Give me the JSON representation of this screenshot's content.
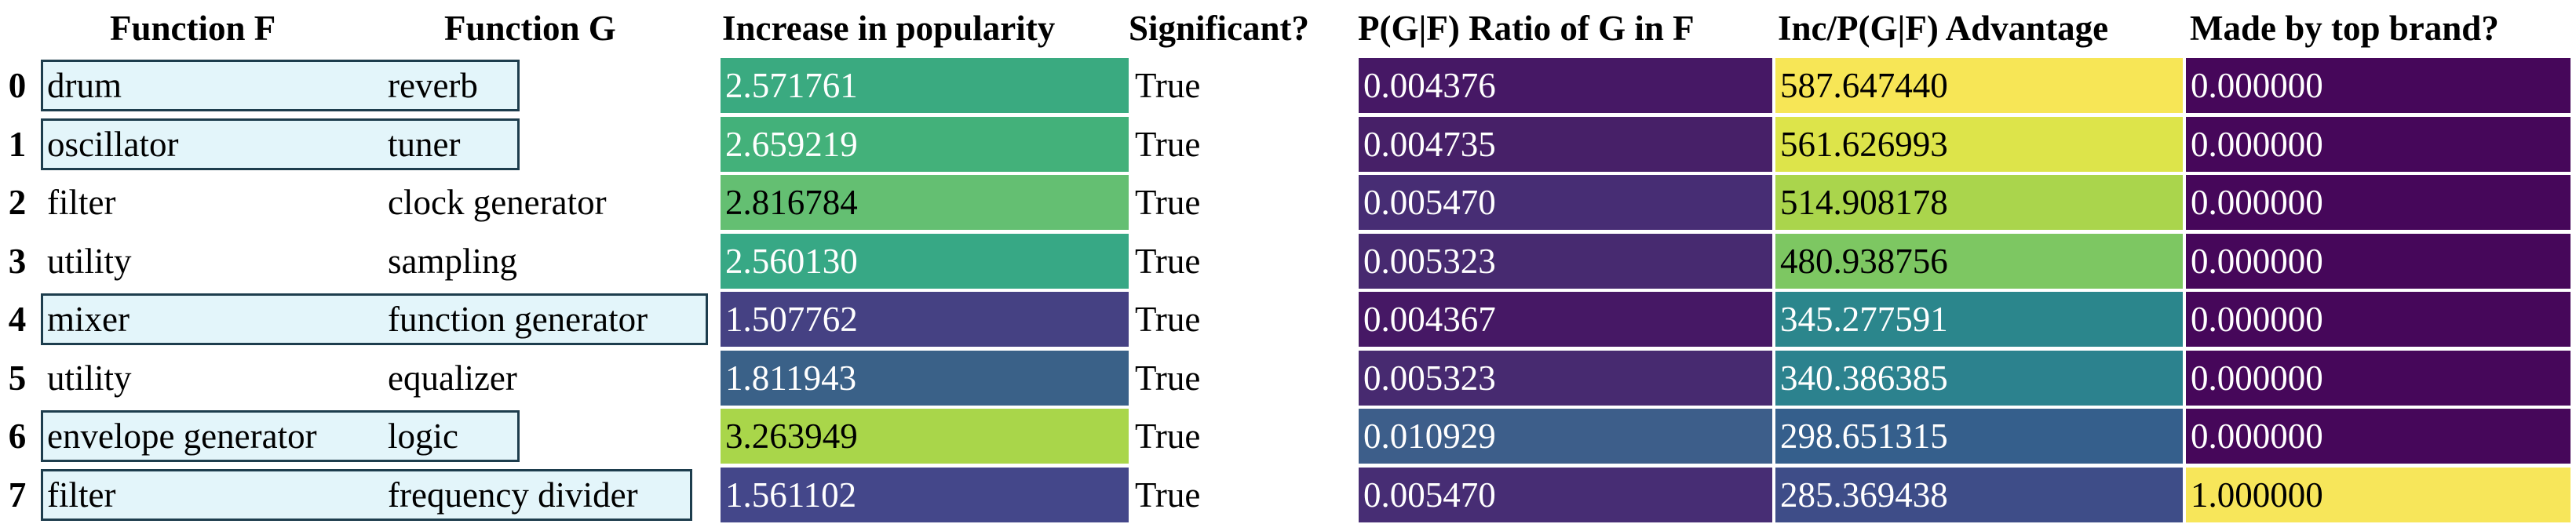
{
  "headers": {
    "function_f": "Function F",
    "function_g": "Function G",
    "increase": "Increase in popularity",
    "significant": "Significant?",
    "pgf": "P(G|F) Ratio of G in F",
    "inc_pgf": "Inc/P(G|F) Advantage",
    "top_brand": "Made by top brand?"
  },
  "rows": [
    {
      "index": "0",
      "f": "drum",
      "g": "reverb",
      "increase": "2.571761",
      "significant": "True",
      "pgf": "0.004376",
      "inc_pgf": "587.647440",
      "top_brand": "0.000000",
      "highlighted": true,
      "colors": {
        "increase": "#3aaa80",
        "pgf": "#461865",
        "inc_pgf": "#f7e656",
        "top_brand": "#46075a"
      }
    },
    {
      "index": "1",
      "f": "oscillator",
      "g": "tuner",
      "increase": "2.659219",
      "significant": "True",
      "pgf": "0.004735",
      "inc_pgf": "561.626993",
      "top_brand": "0.000000",
      "highlighted": true,
      "colors": {
        "increase": "#43b17a",
        "pgf": "#472068",
        "inc_pgf": "#dde44a",
        "top_brand": "#46075a"
      }
    },
    {
      "index": "2",
      "f": "filter",
      "g": "clock generator",
      "increase": "2.816784",
      "significant": "True",
      "pgf": "0.005470",
      "inc_pgf": "514.908178",
      "top_brand": "0.000000",
      "highlighted": false,
      "colors": {
        "increase": "#64bf72",
        "pgf": "#472d74",
        "inc_pgf": "#aad54c",
        "top_brand": "#46075a"
      }
    },
    {
      "index": "3",
      "f": "utility",
      "g": "sampling",
      "increase": "2.560130",
      "significant": "True",
      "pgf": "0.005323",
      "inc_pgf": "480.938756",
      "top_brand": "0.000000",
      "highlighted": false,
      "colors": {
        "increase": "#37a885",
        "pgf": "#472a70",
        "inc_pgf": "#7dc762",
        "top_brand": "#46075a"
      }
    },
    {
      "index": "4",
      "f": "mixer",
      "g": "function generator",
      "increase": "1.507762",
      "significant": "True",
      "pgf": "0.004367",
      "inc_pgf": "345.277591",
      "top_brand": "0.000000",
      "highlighted": true,
      "colors": {
        "increase": "#454183",
        "pgf": "#461865",
        "inc_pgf": "#2b868c",
        "top_brand": "#46075a"
      }
    },
    {
      "index": "5",
      "f": "utility",
      "g": "equalizer",
      "increase": "1.811943",
      "significant": "True",
      "pgf": "0.005323",
      "inc_pgf": "340.386385",
      "top_brand": "0.000000",
      "highlighted": false,
      "colors": {
        "increase": "#3a6188",
        "pgf": "#472a70",
        "inc_pgf": "#2c828e",
        "top_brand": "#46075a"
      }
    },
    {
      "index": "6",
      "f": "envelope generator",
      "g": "logic",
      "increase": "3.263949",
      "significant": "True",
      "pgf": "0.010929",
      "inc_pgf": "298.651315",
      "top_brand": "0.000000",
      "highlighted": true,
      "colors": {
        "increase": "#a9d64a",
        "pgf": "#3d5e8a",
        "inc_pgf": "#355f8c",
        "top_brand": "#46075a"
      }
    },
    {
      "index": "7",
      "f": "filter",
      "g": "frequency divider",
      "increase": "1.561102",
      "significant": "True",
      "pgf": "0.005470",
      "inc_pgf": "285.369438",
      "top_brand": "1.000000",
      "highlighted": true,
      "colors": {
        "increase": "#44478a",
        "pgf": "#472d74",
        "inc_pgf": "#3e4d88",
        "top_brand": "#f7e65a"
      }
    }
  ]
}
